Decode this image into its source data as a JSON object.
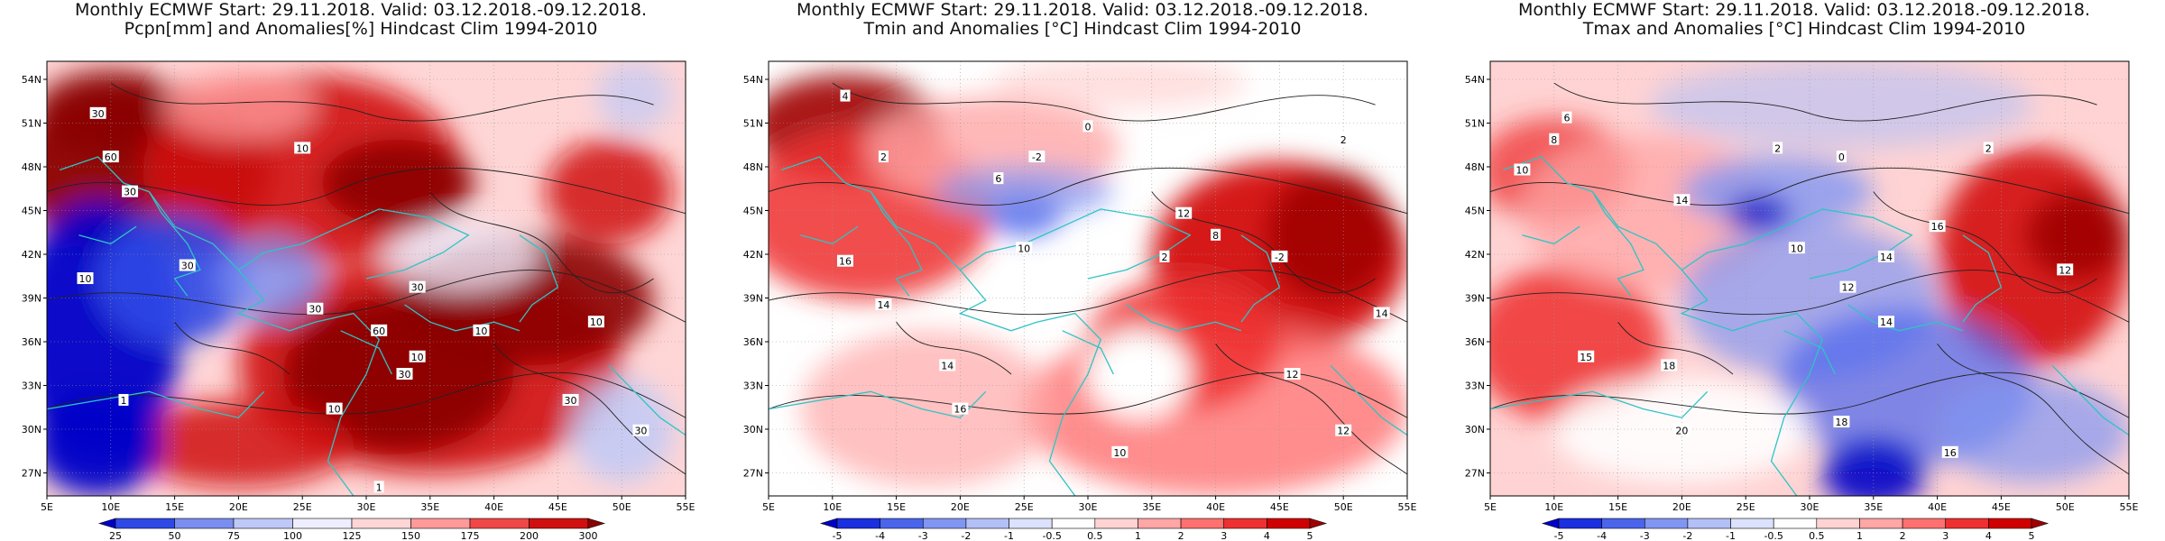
{
  "panels": [
    {
      "title_line1": "Monthly ECMWF Start: 29.11.2018. Valid: 03.12.2018.-09.12.2018.",
      "title_line2": "Pcpn[mm] and Anomalies[%] Hindcast Clim 1994-2010",
      "colorbar_ticks": [
        "25",
        "50",
        "75",
        "100",
        "125",
        "150",
        "175",
        "200",
        "300"
      ],
      "colorbar_colors": [
        "#0000c8",
        "#2e49e6",
        "#7a8ef0",
        "#bfc9f7",
        "#eeeefe",
        "#ffd6d6",
        "#ff9a9a",
        "#f04848",
        "#d01010",
        "#8b0000"
      ]
    },
    {
      "title_line1": "Monthly ECMWF Start: 29.11.2018. Valid: 03.12.2018.-09.12.2018.",
      "title_line2": "Tmin and Anomalies [°C] Hindcast Clim 1994-2010",
      "colorbar_ticks": [
        "-5",
        "-4",
        "-3",
        "-2",
        "-1",
        "-0.5",
        "0.5",
        "1",
        "2",
        "3",
        "4",
        "5"
      ],
      "colorbar_colors": [
        "#0000c8",
        "#1a2fe0",
        "#4a64ec",
        "#8096f2",
        "#b3c0f7",
        "#dce2fb",
        "#ffffff",
        "#ffd3d3",
        "#ffa6a6",
        "#ff7070",
        "#ee3030",
        "#d00000",
        "#a00000"
      ]
    },
    {
      "title_line1": "Monthly ECMWF Start: 29.11.2018. Valid: 03.12.2018.-09.12.2018.",
      "title_line2": "Tmax and Anomalies [°C] Hindcast Clim 1994-2010",
      "colorbar_ticks": [
        "-5",
        "-4",
        "-3",
        "-2",
        "-1",
        "-0.5",
        "0.5",
        "1",
        "2",
        "3",
        "4",
        "5"
      ],
      "colorbar_colors": [
        "#0000c8",
        "#1a2fe0",
        "#4a64ec",
        "#8096f2",
        "#b3c0f7",
        "#dce2fb",
        "#ffffff",
        "#ffd3d3",
        "#ffa6a6",
        "#ff7070",
        "#ee3030",
        "#d00000",
        "#a00000"
      ]
    }
  ],
  "lat_labels": [
    "54N",
    "51N",
    "48N",
    "45N",
    "42N",
    "39N",
    "36N",
    "33N",
    "30N",
    "27N"
  ],
  "lon_labels": [
    "5E",
    "10E",
    "15E",
    "20E",
    "25E",
    "30E",
    "35E",
    "40E",
    "45E",
    "50E",
    "55E"
  ],
  "contour_labels": {
    "p0": [
      "30",
      "60",
      "10",
      "30",
      "10",
      "30",
      "30",
      "10",
      "30",
      "60",
      "30",
      "10",
      "10",
      "30",
      "1",
      "1",
      "10",
      "30"
    ],
    "p1": [
      "4",
      "2",
      "-2",
      "0",
      "6",
      "16",
      "14",
      "10",
      "2",
      "8",
      "-2",
      "12",
      "14",
      "16",
      "10",
      "12",
      "12",
      "14",
      "2"
    ],
    "p2": [
      "6",
      "8",
      "10",
      "2",
      "0",
      "14",
      "10",
      "12",
      "14",
      "16",
      "18",
      "20",
      "18",
      "15",
      "14",
      "16",
      "12",
      "2"
    ]
  },
  "colors": {
    "coastline": "#2ec4c4",
    "contour": "#222222"
  }
}
